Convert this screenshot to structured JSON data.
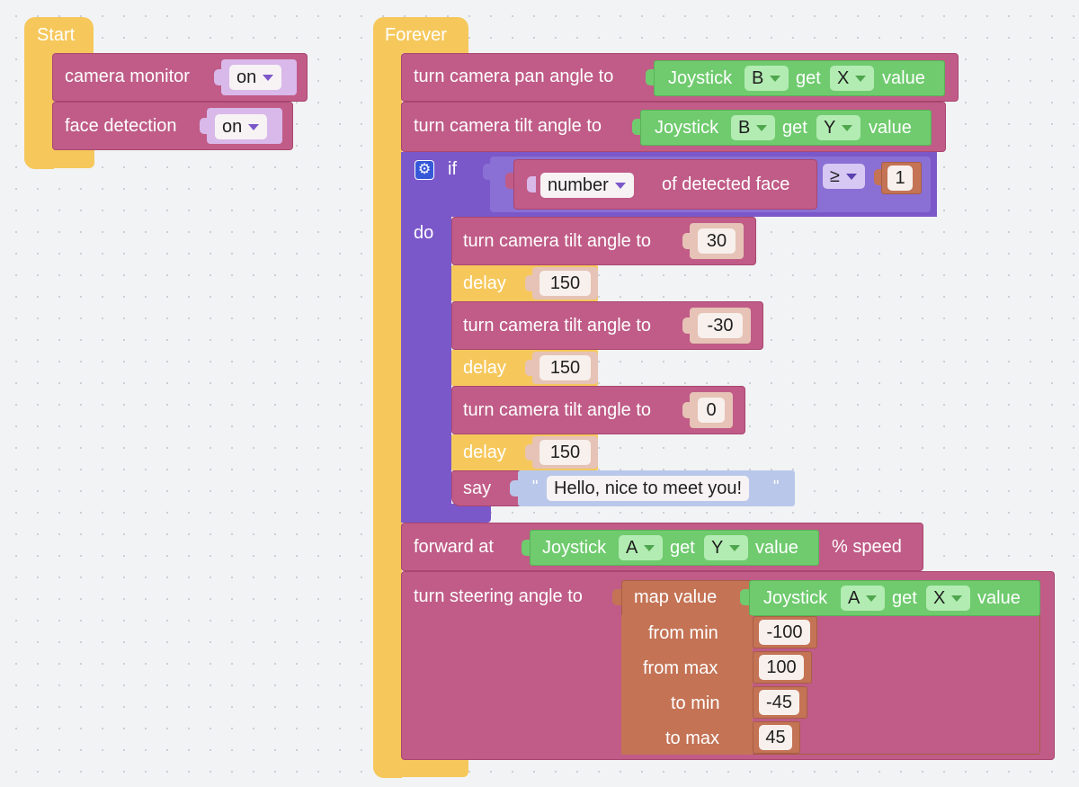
{
  "start_block": {
    "hat_label": "Start",
    "camera_monitor": {
      "label": "camera monitor",
      "value": "on"
    },
    "face_detection": {
      "label": "face detection",
      "value": "on"
    }
  },
  "forever_block": {
    "hat_label": "Forever",
    "pan": {
      "label": "turn camera pan angle to",
      "joystick_label": "Joystick",
      "joystick": "B",
      "get_label": "get",
      "axis": "X",
      "value_label": "value"
    },
    "tilt": {
      "label": "turn camera tilt angle to",
      "joystick_label": "Joystick",
      "joystick": "B",
      "get_label": "get",
      "axis": "Y",
      "value_label": "value"
    },
    "if_block": {
      "if_label": "if",
      "do_label": "do",
      "condition": {
        "mode": "number",
        "suffix": "of detected face",
        "operator": "≥",
        "rhs": "1"
      },
      "steps": [
        {
          "type": "tilt",
          "label": "turn camera tilt angle to",
          "value": "30"
        },
        {
          "type": "delay",
          "label": "delay",
          "value": "150"
        },
        {
          "type": "tilt",
          "label": "turn camera tilt angle to",
          "value": "-30"
        },
        {
          "type": "delay",
          "label": "delay",
          "value": "150"
        },
        {
          "type": "tilt",
          "label": "turn camera tilt angle to",
          "value": "0"
        },
        {
          "type": "delay",
          "label": "delay",
          "value": "150"
        },
        {
          "type": "say",
          "label": "say",
          "quote": "\"",
          "value": "Hello, nice to meet you!"
        }
      ]
    },
    "forward": {
      "label": "forward at",
      "joystick_label": "Joystick",
      "joystick": "A",
      "get_label": "get",
      "axis": "Y",
      "value_label": "value",
      "suffix": "% speed"
    },
    "steering": {
      "label": "turn steering angle to",
      "map_label": "map value",
      "joystick_label": "Joystick",
      "joystick": "A",
      "get_label": "get",
      "axis": "X",
      "value_label": "value",
      "from_min_label": "from min",
      "from_min": "-100",
      "from_max_label": "from max",
      "from_max": "100",
      "to_min_label": "to min",
      "to_min": "-45",
      "to_max_label": "to max",
      "to_max": "45"
    }
  }
}
